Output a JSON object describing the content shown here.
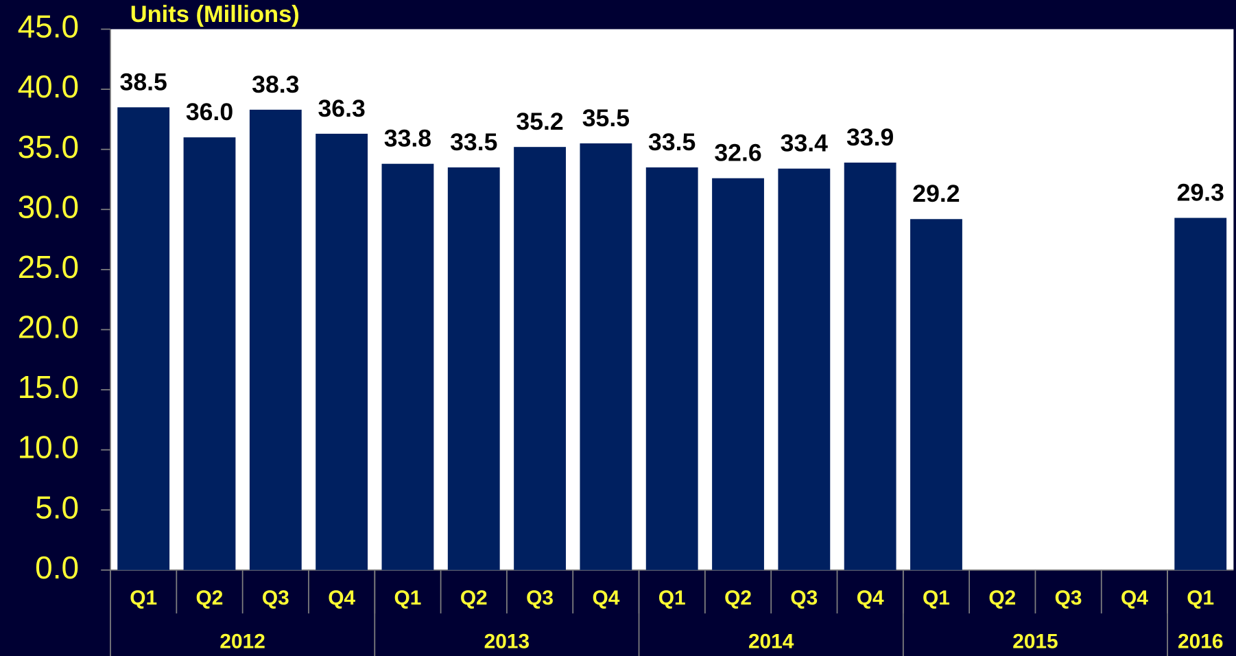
{
  "chart_data": {
    "type": "bar",
    "y_axis_label": "Units (Millions)",
    "categories": [
      "Q1",
      "Q2",
      "Q3",
      "Q4",
      "Q1",
      "Q2",
      "Q3",
      "Q4",
      "Q1",
      "Q2",
      "Q3",
      "Q4",
      "Q1",
      "Q2",
      "Q3",
      "Q4",
      "Q1"
    ],
    "years": [
      "2012",
      "2013",
      "2014",
      "2015",
      "2016"
    ],
    "year_spans": [
      4,
      4,
      4,
      4,
      1
    ],
    "values": [
      38.5,
      36.0,
      38.3,
      36.3,
      33.8,
      33.5,
      35.2,
      35.5,
      33.5,
      32.6,
      33.4,
      33.9,
      29.2,
      null,
      null,
      null,
      29.3
    ],
    "value_labels": [
      "38.5",
      "36.0",
      "38.3",
      "36.3",
      "33.8",
      "33.5",
      "35.2",
      "35.5",
      "33.5",
      "32.6",
      "33.4",
      "33.9",
      "29.2",
      null,
      null,
      null,
      "29.3"
    ],
    "color": "#002060",
    "ylim": [
      0,
      45
    ],
    "yticks": [
      {
        "value": 0,
        "label": "0.0"
      },
      {
        "value": 5,
        "label": "5.0"
      },
      {
        "value": 10,
        "label": "10.0"
      },
      {
        "value": 15,
        "label": "15.0"
      },
      {
        "value": 20,
        "label": "20.0"
      },
      {
        "value": 25,
        "label": "25.0"
      },
      {
        "value": 30,
        "label": "30.0"
      },
      {
        "value": 35,
        "label": "35.0"
      },
      {
        "value": 40,
        "label": "40.0"
      },
      {
        "value": 45,
        "label": "45.0"
      }
    ],
    "grid": false
  }
}
